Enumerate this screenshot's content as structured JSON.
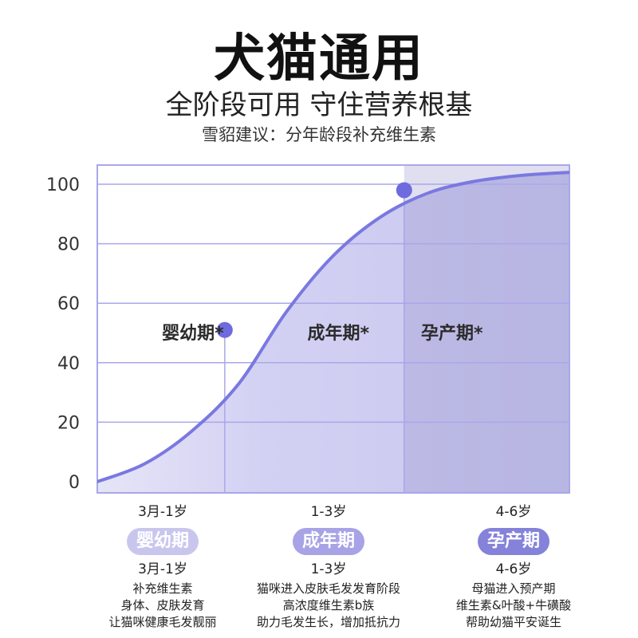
{
  "header": {
    "title": "犬猫通用",
    "subtitle": "全阶段可用 守住营养根基",
    "caption": "雪貂建议：分年龄段补充维生素"
  },
  "colors": {
    "accent": "#7A78E0",
    "grid": "#A9A7EA",
    "pill_infant": "#C9C6EE",
    "pill_adult": "#A7A3E6",
    "pill_pregnant": "#8582DA"
  },
  "chart_data": {
    "type": "area",
    "yticks": [
      0,
      20,
      40,
      60,
      80,
      100
    ],
    "ylim": [
      0,
      105
    ],
    "x": [
      0,
      0.1,
      0.2,
      0.3,
      0.4,
      0.5,
      0.6,
      0.7,
      0.8,
      0.9,
      1.0
    ],
    "y": [
      0,
      6,
      17,
      33,
      57,
      76,
      89,
      97,
      101,
      103,
      104
    ],
    "points": [
      {
        "x": 0.27,
        "y": 51
      },
      {
        "x": 0.65,
        "y": 98
      }
    ],
    "dividers": [
      0.27,
      0.65
    ],
    "region_labels": [
      "婴幼期*",
      "成年期*",
      "孕产期*"
    ]
  },
  "stages": [
    {
      "range_top": "3月-1岁",
      "pill": "婴幼期",
      "range_bottom": "3月-1岁",
      "desc": [
        "补充维生素",
        "身体、皮肤发育",
        "让猫咪健康毛发靓丽"
      ]
    },
    {
      "range_top": "1-3岁",
      "pill": "成年期",
      "range_bottom": "1-3岁",
      "desc": [
        "猫咪进入皮肤毛发发育阶段",
        "高浓度维生素b族",
        "助力毛发生长，增加抵抗力"
      ]
    },
    {
      "range_top": "4-6岁",
      "pill": "孕产期",
      "range_bottom": "4-6岁",
      "desc": [
        "母猫进入预产期",
        "维生素&叶酸+牛磺酸",
        "帮助幼猫平安诞生"
      ]
    }
  ]
}
